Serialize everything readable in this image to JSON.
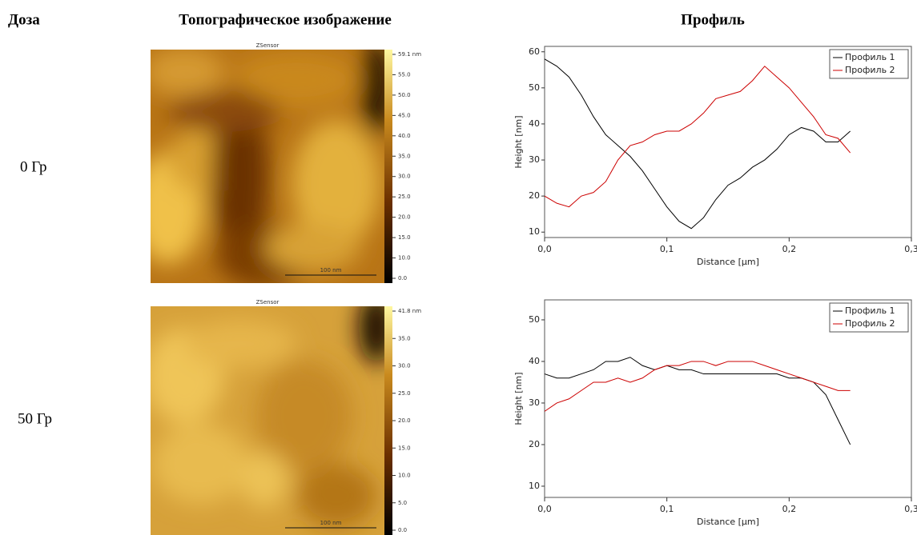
{
  "header": {
    "dose": "Доза",
    "image": "Топографическое изображение",
    "profile": "Профиль"
  },
  "rows": [
    {
      "dose": "0 Гр",
      "image": {
        "title": "ZSensor",
        "scale_bar": "100 nm",
        "colorbar": [
          "59.1 nm",
          "55.0",
          "50.0",
          "45.0",
          "40.0",
          "35.0",
          "30.0",
          "25.0",
          "20.0",
          "15.0",
          "10.0",
          "0.0"
        ]
      },
      "chart_data": {
        "type": "line",
        "xlabel": "Distance [µm]",
        "ylabel": "Height [nm]",
        "x": [
          0,
          0.01,
          0.02,
          0.03,
          0.04,
          0.05,
          0.06,
          0.07,
          0.08,
          0.09,
          0.1,
          0.11,
          0.12,
          0.13,
          0.14,
          0.15,
          0.16,
          0.17,
          0.18,
          0.19,
          0.2,
          0.21,
          0.22,
          0.23,
          0.24,
          0.25
        ],
        "series": [
          {
            "name": "Профиль 1",
            "color": "#000000",
            "values": [
              58,
              56,
              53,
              48,
              42,
              37,
              34,
              31,
              27,
              22,
              17,
              13,
              11,
              14,
              19,
              23,
              25,
              28,
              30,
              33,
              37,
              39,
              38,
              35,
              35,
              38
            ]
          },
          {
            "name": "Профиль 2",
            "color": "#cc0000",
            "values": [
              20,
              18,
              17,
              20,
              21,
              24,
              30,
              34,
              35,
              37,
              38,
              38,
              40,
              43,
              47,
              48,
              49,
              52,
              56,
              53,
              50,
              46,
              42,
              37,
              36,
              32
            ]
          }
        ],
        "xlim": [
          0,
          0.3
        ],
        "ylim": [
          8.5,
          61.5
        ],
        "xticks": [
          {
            "value": 0,
            "label": "0,0"
          },
          {
            "value": 0.1,
            "label": "0,1"
          },
          {
            "value": 0.2,
            "label": "0,2"
          },
          {
            "value": 0.3,
            "label": "0,3"
          }
        ],
        "yticks": [
          10,
          20,
          30,
          40,
          50,
          60
        ],
        "legend": "upper right"
      }
    },
    {
      "dose": "50 Гр",
      "image": {
        "title": "ZSensor",
        "scale_bar": "100 nm",
        "colorbar": [
          "41.8 nm",
          "35.0",
          "30.0",
          "25.0",
          "20.0",
          "15.0",
          "10.0",
          "5.0",
          "0.0"
        ]
      },
      "chart_data": {
        "type": "line",
        "xlabel": "Distance [µm]",
        "ylabel": "Height [nm]",
        "x": [
          0,
          0.01,
          0.02,
          0.03,
          0.04,
          0.05,
          0.06,
          0.07,
          0.08,
          0.09,
          0.1,
          0.11,
          0.12,
          0.13,
          0.14,
          0.15,
          0.16,
          0.17,
          0.18,
          0.19,
          0.2,
          0.21,
          0.22,
          0.23,
          0.24,
          0.25
        ],
        "series": [
          {
            "name": "Профиль 1",
            "color": "#000000",
            "values": [
              37,
              36,
              36,
              37,
              38,
              40,
              40,
              41,
              39,
              38,
              39,
              38,
              38,
              37,
              37,
              37,
              37,
              37,
              37,
              37,
              36,
              36,
              35,
              32,
              26,
              20
            ]
          },
          {
            "name": "Профиль 2",
            "color": "#cc0000",
            "values": [
              28,
              30,
              31,
              33,
              35,
              35,
              36,
              35,
              36,
              38,
              39,
              39,
              40,
              40,
              39,
              40,
              40,
              40,
              39,
              38,
              37,
              36,
              35,
              34,
              33,
              33
            ]
          }
        ],
        "xlim": [
          0,
          0.3
        ],
        "ylim": [
          7.3,
          54.8
        ],
        "xticks": [
          {
            "value": 0,
            "label": "0,0"
          },
          {
            "value": 0.1,
            "label": "0,1"
          },
          {
            "value": 0.2,
            "label": "0,2"
          },
          {
            "value": 0.3,
            "label": "0,3"
          }
        ],
        "yticks": [
          10,
          20,
          30,
          40,
          50
        ],
        "legend": "upper right"
      }
    }
  ]
}
